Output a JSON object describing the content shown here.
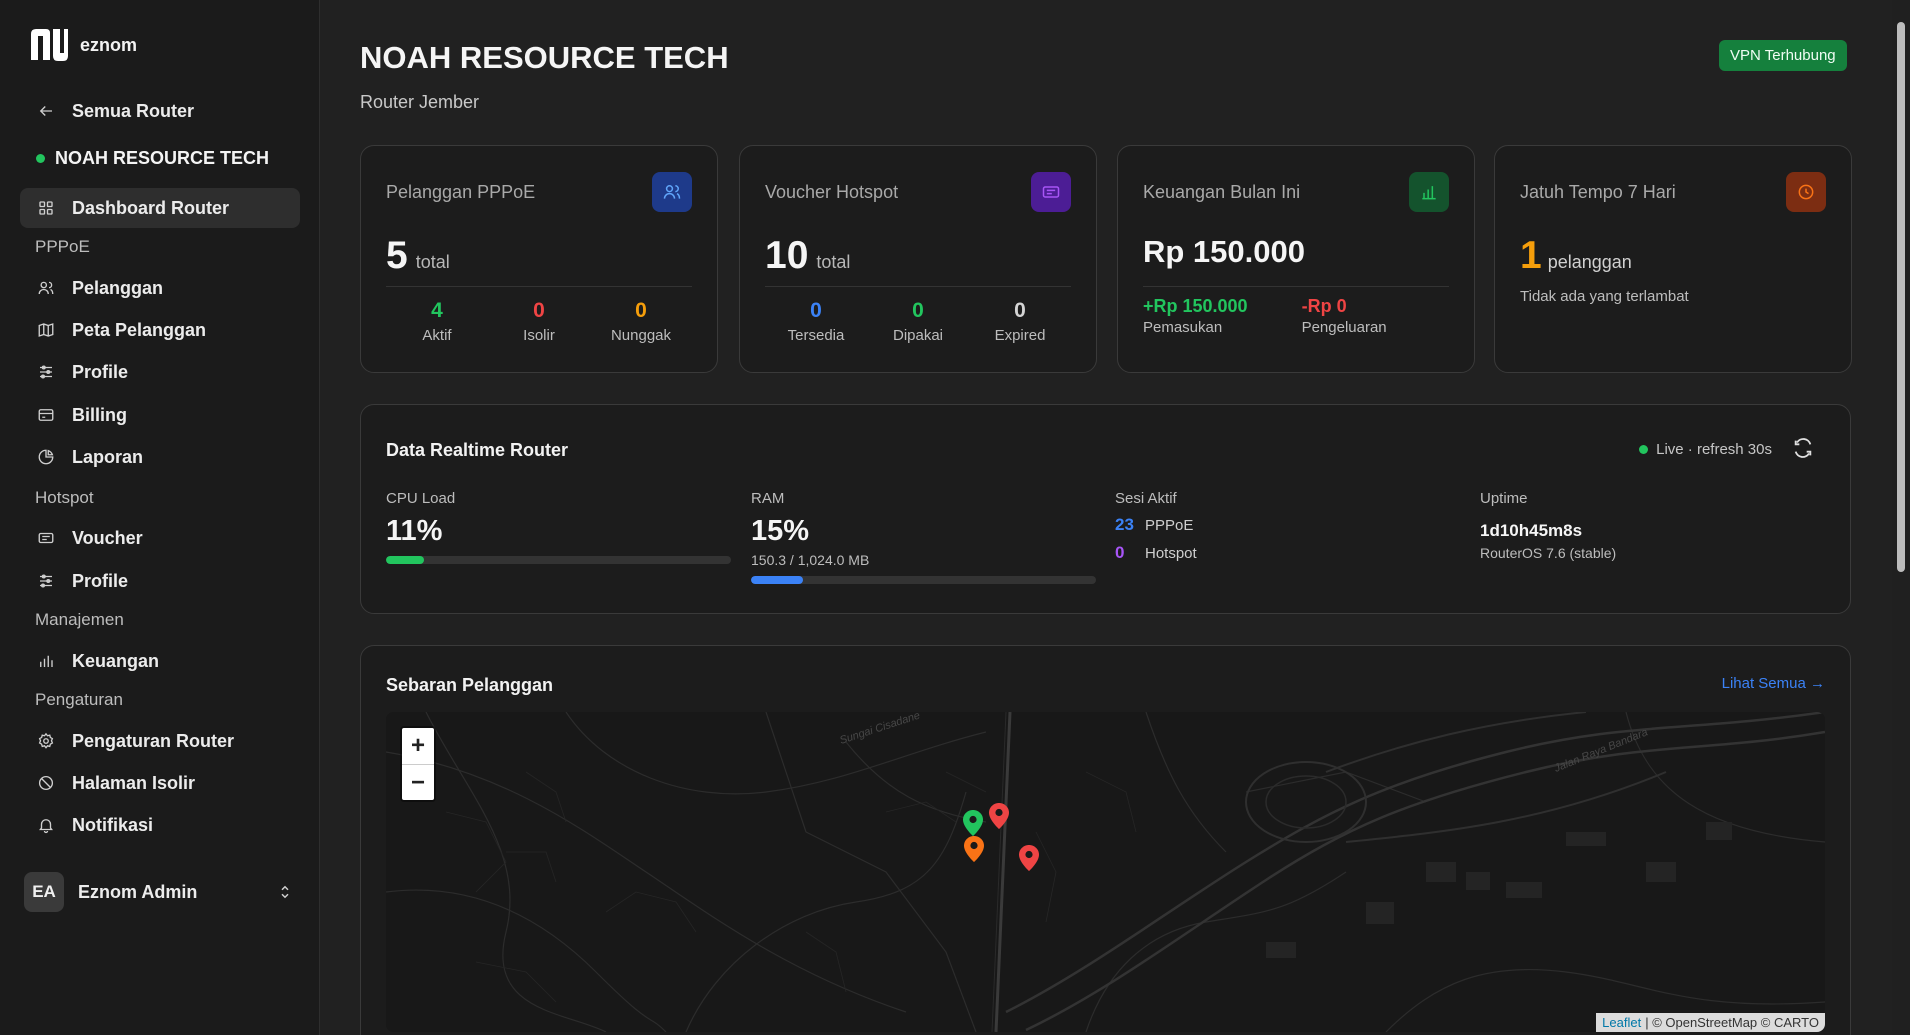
{
  "brand": {
    "name": "eznom"
  },
  "sidebar": {
    "back_label": "Semua Router",
    "router_name": "NOAH RESOURCE TECH",
    "dashboard_label": "Dashboard Router",
    "sections": {
      "pppoe": "PPPoE",
      "hotspot": "Hotspot",
      "manajemen": "Manajemen",
      "pengaturan": "Pengaturan"
    },
    "items": {
      "pelanggan": "Pelanggan",
      "peta": "Peta Pelanggan",
      "profile_pppoe": "Profile",
      "billing": "Billing",
      "laporan": "Laporan",
      "voucher": "Voucher",
      "profile_hotspot": "Profile",
      "keuangan": "Keuangan",
      "pengaturan_router": "Pengaturan Router",
      "halaman_isolir": "Halaman Isolir",
      "notifikasi": "Notifikasi"
    },
    "user": {
      "initials": "EA",
      "name": "Eznom Admin"
    }
  },
  "header": {
    "title": "NOAH RESOURCE TECH",
    "subtitle": "Router Jember",
    "vpn_status": "VPN Terhubung"
  },
  "cards": {
    "pppoe": {
      "label": "Pelanggan PPPoE",
      "total": "5",
      "total_unit": "total",
      "stats": [
        {
          "value": "4",
          "label": "Aktif",
          "color": "#22c55e"
        },
        {
          "value": "0",
          "label": "Isolir",
          "color": "#ef4444"
        },
        {
          "value": "0",
          "label": "Nunggak",
          "color": "#f59e0b"
        }
      ]
    },
    "voucher": {
      "label": "Voucher Hotspot",
      "total": "10",
      "total_unit": "total",
      "stats": [
        {
          "value": "0",
          "label": "Tersedia",
          "color": "#3b82f6"
        },
        {
          "value": "0",
          "label": "Dipakai",
          "color": "#22c55e"
        },
        {
          "value": "0",
          "label": "Expired",
          "color": "#d4d4d4"
        }
      ]
    },
    "keuangan": {
      "label": "Keuangan Bulan Ini",
      "amount": "Rp 150.000",
      "income_value": "+Rp 150.000",
      "income_label": "Pemasukan",
      "expense_value": "-Rp 0",
      "expense_label": "Pengeluaran"
    },
    "jatuh_tempo": {
      "label": "Jatuh Tempo 7 Hari",
      "count": "1",
      "unit": "pelanggan",
      "note": "Tidak ada yang terlambat"
    }
  },
  "realtime": {
    "title": "Data Realtime Router",
    "live_label": "Live · refresh 30s",
    "cpu": {
      "label": "CPU Load",
      "value": "11%",
      "fraction": 0.11
    },
    "ram": {
      "label": "RAM",
      "value": "15%",
      "detail": "150.3 / 1,024.0 MB",
      "fraction": 0.15
    },
    "sessions": {
      "label": "Sesi Aktif",
      "pppoe_count": "23",
      "pppoe_label": "PPPoE",
      "hotspot_count": "0",
      "hotspot_label": "Hotspot"
    },
    "uptime": {
      "label": "Uptime",
      "value": "1d10h45m8s",
      "os": "RouterOS 7.6 (stable)"
    }
  },
  "map": {
    "title": "Sebaran Pelanggan",
    "link_label": "Lihat Semua →",
    "zoom_in": "+",
    "zoom_out": "−",
    "attribution_leaflet": "Leaflet",
    "attribution_rest": "| © OpenStreetMap © CARTO",
    "street_labels": [
      "Sungai Cisadane",
      "Jalan Raya Bandara"
    ],
    "marker_colors": [
      "#22c55e",
      "#ef4444",
      "#f97316",
      "#ef4444"
    ]
  }
}
